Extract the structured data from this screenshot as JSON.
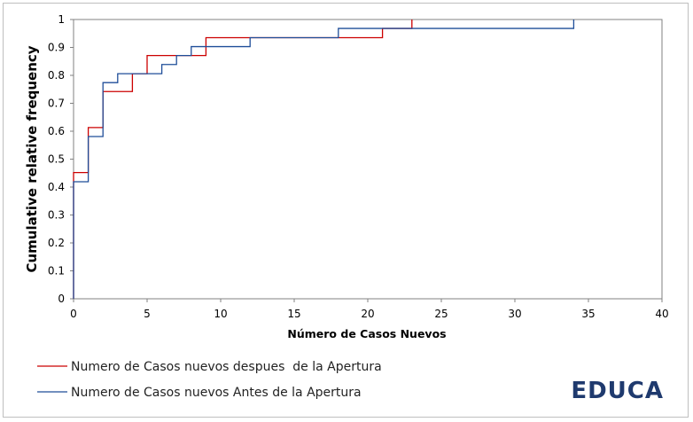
{
  "chart_data": {
    "type": "line",
    "step": true,
    "xlabel": "Número de Casos Nuevos",
    "ylabel": "Cumulative relative frequency",
    "xlim": [
      0,
      40
    ],
    "ylim": [
      0,
      1
    ],
    "x_ticks": [
      0,
      5,
      10,
      15,
      20,
      25,
      30,
      35,
      40
    ],
    "y_ticks": [
      0,
      0.1,
      0.2,
      0.3,
      0.4,
      0.5,
      0.6,
      0.7,
      0.8,
      0.9,
      1
    ],
    "grid": false,
    "legend_position": "bottom-left",
    "series": [
      {
        "name": "Numero de Casos nuevos despues  de la Apertura",
        "color": "#cc0000",
        "points": [
          [
            0,
            0.452
          ],
          [
            1,
            0.613
          ],
          [
            2,
            0.742
          ],
          [
            4,
            0.806
          ],
          [
            5,
            0.871
          ],
          [
            8,
            0.871
          ],
          [
            9,
            0.935
          ],
          [
            21,
            0.968
          ],
          [
            23,
            1.0
          ]
        ]
      },
      {
        "name": "Numero de Casos nuevos Antes de la Apertura",
        "color": "#1f4e99",
        "points": [
          [
            0,
            0.419
          ],
          [
            1,
            0.581
          ],
          [
            2,
            0.774
          ],
          [
            3,
            0.806
          ],
          [
            6,
            0.839
          ],
          [
            7,
            0.871
          ],
          [
            8,
            0.903
          ],
          [
            12,
            0.935
          ],
          [
            18,
            0.968
          ],
          [
            34,
            1.0
          ]
        ]
      }
    ]
  },
  "logo": {
    "text": "EDUCA",
    "color": "#1f3a6e"
  }
}
